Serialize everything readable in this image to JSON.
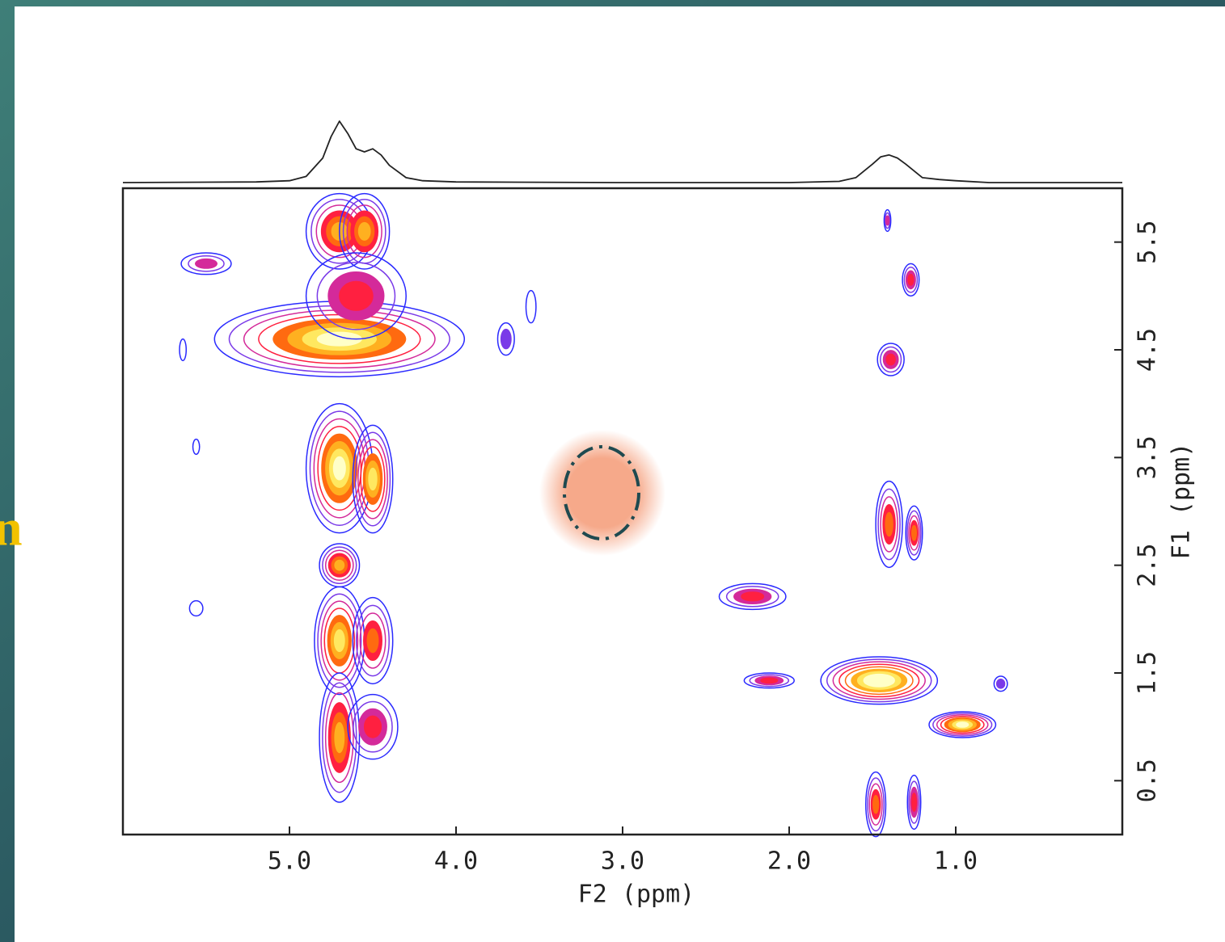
{
  "chart_data": {
    "type": "contour",
    "side_text": "n",
    "xlabel": "F2 (ppm)",
    "ylabel": "F1 (ppm)",
    "xlim": [
      6.0,
      0.0
    ],
    "ylim": [
      0.0,
      6.0
    ],
    "xticks": [
      {
        "value": 5,
        "label": "5.0"
      },
      {
        "value": 4,
        "label": "4.0"
      },
      {
        "value": 3,
        "label": "3.0"
      },
      {
        "value": 2,
        "label": "2.0"
      },
      {
        "value": 1,
        "label": "1.0"
      }
    ],
    "yticks": [
      0.5,
      1.5,
      2.5,
      3.5,
      4.5,
      5.5
    ],
    "colors": [
      "#2a2aff",
      "#7a3ae8",
      "#d42a9a",
      "#ff2040",
      "#ff6a10",
      "#ffb020",
      "#ffe860",
      "#ffffc8"
    ],
    "projection": {
      "x": [
        6.0,
        5.2,
        5.0,
        4.9,
        4.8,
        4.75,
        4.7,
        4.65,
        4.6,
        4.55,
        4.5,
        4.45,
        4.4,
        4.3,
        4.2,
        4.0,
        3.0,
        2.0,
        1.7,
        1.6,
        1.5,
        1.45,
        1.4,
        1.35,
        1.3,
        1.2,
        1.1,
        1.0,
        0.8,
        0.0
      ],
      "values": [
        0.0,
        0.01,
        0.03,
        0.1,
        0.4,
        0.75,
        1.0,
        0.8,
        0.55,
        0.5,
        0.55,
        0.45,
        0.28,
        0.08,
        0.03,
        0.01,
        0.0,
        0.0,
        0.02,
        0.08,
        0.3,
        0.42,
        0.45,
        0.4,
        0.3,
        0.08,
        0.05,
        0.03,
        0.0,
        0.0
      ]
    },
    "peaks": [
      {
        "x": 4.7,
        "y": 4.6,
        "dx": 0.75,
        "dy": 0.35,
        "levels": 8
      },
      {
        "x": 4.7,
        "y": 5.6,
        "dx": 0.2,
        "dy": 0.35,
        "levels": 6
      },
      {
        "x": 4.55,
        "y": 5.6,
        "dx": 0.15,
        "dy": 0.35,
        "levels": 6
      },
      {
        "x": 4.6,
        "y": 5.0,
        "dx": 0.3,
        "dy": 0.4,
        "levels": 4
      },
      {
        "x": 4.7,
        "y": 3.4,
        "dx": 0.2,
        "dy": 0.6,
        "levels": 8
      },
      {
        "x": 4.5,
        "y": 3.3,
        "dx": 0.12,
        "dy": 0.5,
        "levels": 7
      },
      {
        "x": 4.7,
        "y": 2.5,
        "dx": 0.12,
        "dy": 0.2,
        "levels": 6
      },
      {
        "x": 4.7,
        "y": 1.8,
        "dx": 0.15,
        "dy": 0.5,
        "levels": 7
      },
      {
        "x": 4.5,
        "y": 1.8,
        "dx": 0.12,
        "dy": 0.4,
        "levels": 5
      },
      {
        "x": 4.7,
        "y": 0.9,
        "dx": 0.12,
        "dy": 0.6,
        "levels": 6
      },
      {
        "x": 4.5,
        "y": 1.0,
        "dx": 0.15,
        "dy": 0.3,
        "levels": 4
      },
      {
        "x": 5.5,
        "y": 5.3,
        "dx": 0.15,
        "dy": 0.1,
        "levels": 3
      },
      {
        "x": 5.64,
        "y": 4.5,
        "dx": 0.02,
        "dy": 0.1,
        "levels": 1
      },
      {
        "x": 5.56,
        "y": 3.6,
        "dx": 0.02,
        "dy": 0.07,
        "levels": 1
      },
      {
        "x": 5.56,
        "y": 2.1,
        "dx": 0.04,
        "dy": 0.07,
        "levels": 1
      },
      {
        "x": 3.7,
        "y": 4.6,
        "dx": 0.05,
        "dy": 0.15,
        "levels": 2
      },
      {
        "x": 3.55,
        "y": 4.9,
        "dx": 0.03,
        "dy": 0.15,
        "levels": 1
      },
      {
        "x": 3.13,
        "y": 3.18,
        "dx": 0.03,
        "dy": 0.1,
        "levels": 2
      },
      {
        "x": 2.22,
        "y": 2.21,
        "dx": 0.2,
        "dy": 0.12,
        "levels": 4
      },
      {
        "x": 2.12,
        "y": 1.43,
        "dx": 0.15,
        "dy": 0.07,
        "levels": 4
      },
      {
        "x": 1.46,
        "y": 1.43,
        "dx": 0.35,
        "dy": 0.22,
        "levels": 9
      },
      {
        "x": 0.96,
        "y": 1.02,
        "dx": 0.2,
        "dy": 0.12,
        "levels": 8
      },
      {
        "x": 1.4,
        "y": 2.88,
        "dx": 0.08,
        "dy": 0.4,
        "levels": 5
      },
      {
        "x": 1.25,
        "y": 2.8,
        "dx": 0.05,
        "dy": 0.25,
        "levels": 5
      },
      {
        "x": 1.27,
        "y": 5.15,
        "dx": 0.05,
        "dy": 0.15,
        "levels": 4
      },
      {
        "x": 1.39,
        "y": 4.41,
        "dx": 0.08,
        "dy": 0.15,
        "levels": 4
      },
      {
        "x": 1.41,
        "y": 5.7,
        "dx": 0.02,
        "dy": 0.1,
        "levels": 3
      },
      {
        "x": 1.48,
        "y": 0.28,
        "dx": 0.06,
        "dy": 0.3,
        "levels": 5
      },
      {
        "x": 1.25,
        "y": 0.3,
        "dx": 0.04,
        "dy": 0.25,
        "levels": 4
      },
      {
        "x": 0.73,
        "y": 1.4,
        "dx": 0.04,
        "dy": 0.07,
        "levels": 2
      }
    ]
  }
}
